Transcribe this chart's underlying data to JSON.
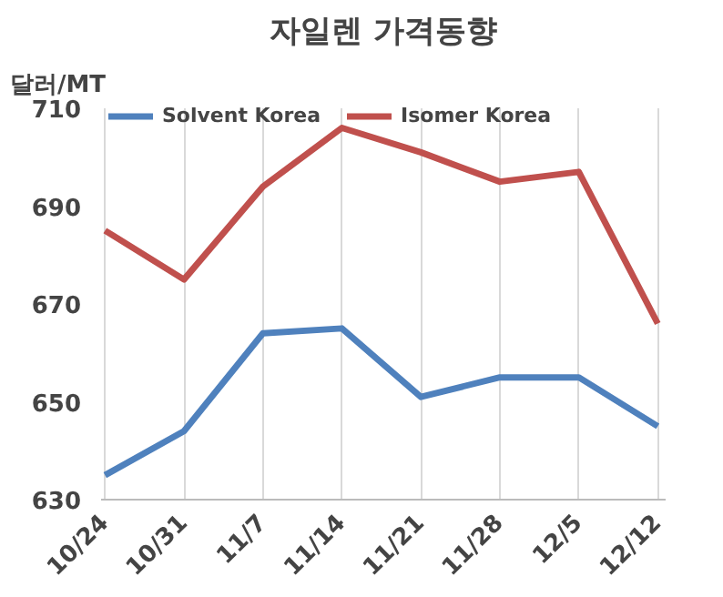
{
  "chart_data": {
    "type": "line",
    "title": "자일렌 가격동향",
    "ylabel": "달러/MT",
    "categories": [
      "10/24",
      "10/31",
      "11/7",
      "11/14",
      "11/21",
      "11/28",
      "12/5",
      "12/12"
    ],
    "series": [
      {
        "name": "Solvent Korea",
        "color": "#4f81bd",
        "values": [
          635,
          644,
          664,
          665,
          651,
          655,
          655,
          645
        ]
      },
      {
        "name": "Isomer Korea",
        "color": "#c0504d",
        "values": [
          685,
          675,
          694,
          706,
          701,
          695,
          697,
          666
        ]
      }
    ],
    "ylim": [
      630,
      710
    ],
    "yticks": [
      630,
      650,
      670,
      690,
      710
    ],
    "grid": "x",
    "legend": "top",
    "marker": "none",
    "line_style": "solid"
  }
}
